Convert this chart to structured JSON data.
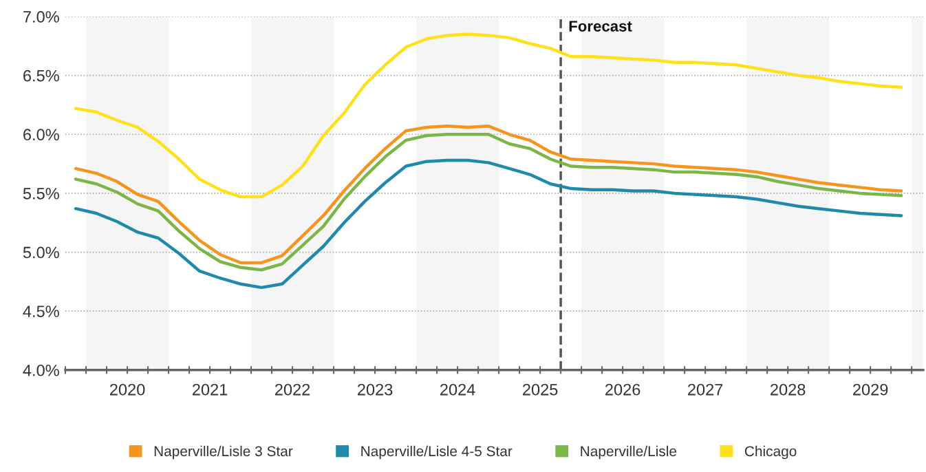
{
  "chart_data": {
    "type": "line",
    "x": [
      2019.875,
      2020.125,
      2020.375,
      2020.625,
      2020.875,
      2021.125,
      2021.375,
      2021.625,
      2021.875,
      2022.125,
      2022.375,
      2022.625,
      2022.875,
      2023.125,
      2023.375,
      2023.625,
      2023.875,
      2024.125,
      2024.375,
      2024.625,
      2024.875,
      2025.125,
      2025.375,
      2025.625,
      2025.875,
      2026.125,
      2026.375,
      2026.625,
      2026.875,
      2027.125,
      2027.375,
      2027.625,
      2027.875,
      2028.125,
      2028.375,
      2028.625,
      2028.875,
      2029.125,
      2029.375,
      2029.625,
      2029.875
    ],
    "series": [
      {
        "name": "Naperville/Lisle 3 Star",
        "color": "#f7941d",
        "values": [
          5.71,
          5.67,
          5.6,
          5.49,
          5.43,
          5.26,
          5.1,
          4.98,
          4.91,
          4.91,
          4.97,
          5.14,
          5.31,
          5.52,
          5.71,
          5.88,
          6.03,
          6.06,
          6.07,
          6.06,
          6.07,
          6.0,
          5.95,
          5.85,
          5.79,
          5.78,
          5.77,
          5.76,
          5.75,
          5.73,
          5.72,
          5.71,
          5.7,
          5.68,
          5.65,
          5.62,
          5.59,
          5.57,
          5.55,
          5.53,
          5.52
        ]
      },
      {
        "name": "Naperville/Lisle 4-5 Star",
        "color": "#1f8aaa",
        "values": [
          5.37,
          5.33,
          5.26,
          5.17,
          5.12,
          4.99,
          4.84,
          4.78,
          4.73,
          4.7,
          4.73,
          4.89,
          5.05,
          5.25,
          5.43,
          5.59,
          5.73,
          5.77,
          5.78,
          5.78,
          5.76,
          5.71,
          5.66,
          5.58,
          5.54,
          5.53,
          5.53,
          5.52,
          5.52,
          5.5,
          5.49,
          5.48,
          5.47,
          5.45,
          5.42,
          5.39,
          5.37,
          5.35,
          5.33,
          5.32,
          5.31
        ]
      },
      {
        "name": "Naperville/Lisle",
        "color": "#7ab648",
        "values": [
          5.62,
          5.58,
          5.51,
          5.41,
          5.35,
          5.18,
          5.03,
          4.92,
          4.87,
          4.85,
          4.9,
          5.06,
          5.22,
          5.45,
          5.64,
          5.81,
          5.95,
          5.99,
          6.0,
          6.0,
          6.0,
          5.92,
          5.88,
          5.79,
          5.73,
          5.72,
          5.72,
          5.71,
          5.7,
          5.68,
          5.68,
          5.67,
          5.66,
          5.64,
          5.6,
          5.57,
          5.54,
          5.52,
          5.5,
          5.49,
          5.48
        ]
      },
      {
        "name": "Chicago",
        "color": "#ffe01b",
        "values": [
          6.22,
          6.19,
          6.12,
          6.06,
          5.94,
          5.79,
          5.62,
          5.53,
          5.47,
          5.47,
          5.57,
          5.73,
          5.99,
          6.18,
          6.42,
          6.59,
          6.74,
          6.81,
          6.84,
          6.85,
          6.84,
          6.82,
          6.77,
          6.73,
          6.66,
          6.66,
          6.65,
          6.64,
          6.63,
          6.61,
          6.61,
          6.6,
          6.59,
          6.56,
          6.53,
          6.5,
          6.48,
          6.45,
          6.43,
          6.41,
          6.4
        ]
      }
    ],
    "xlim": [
      2019.75,
      2030.14
    ],
    "xticks": [
      {
        "value": 2019.75,
        "label": null
      },
      {
        "value": 2020,
        "label": null
      },
      {
        "value": 2020.25,
        "label": null
      },
      {
        "value": 2020.5,
        "label": null
      },
      {
        "value": 2020.75,
        "label": null
      },
      {
        "value": 2021,
        "label": null
      },
      {
        "value": 2021.25,
        "label": null
      },
      {
        "value": 2021.5,
        "label": null
      },
      {
        "value": 2021.75,
        "label": null
      },
      {
        "value": 2022,
        "label": null
      },
      {
        "value": 2022.25,
        "label": null
      },
      {
        "value": 2022.5,
        "label": null
      },
      {
        "value": 2022.75,
        "label": null
      },
      {
        "value": 2023,
        "label": null
      },
      {
        "value": 2023.25,
        "label": null
      },
      {
        "value": 2023.5,
        "label": null
      },
      {
        "value": 2023.75,
        "label": null
      },
      {
        "value": 2024,
        "label": null
      },
      {
        "value": 2024.25,
        "label": null
      },
      {
        "value": 2024.5,
        "label": null
      },
      {
        "value": 2024.75,
        "label": null
      },
      {
        "value": 2025,
        "label": null
      },
      {
        "value": 2025.25,
        "label": null
      },
      {
        "value": 2025.5,
        "label": null
      },
      {
        "value": 2025.75,
        "label": null
      },
      {
        "value": 2026,
        "label": null
      },
      {
        "value": 2026.25,
        "label": null
      },
      {
        "value": 2026.5,
        "label": null
      },
      {
        "value": 2026.75,
        "label": null
      },
      {
        "value": 2027,
        "label": null
      },
      {
        "value": 2027.25,
        "label": null
      },
      {
        "value": 2027.5,
        "label": null
      },
      {
        "value": 2027.75,
        "label": null
      },
      {
        "value": 2028,
        "label": null
      },
      {
        "value": 2028.25,
        "label": null
      },
      {
        "value": 2028.5,
        "label": null
      },
      {
        "value": 2028.75,
        "label": null
      },
      {
        "value": 2029,
        "label": null
      },
      {
        "value": 2029.25,
        "label": null
      },
      {
        "value": 2029.5,
        "label": null
      },
      {
        "value": 2029.75,
        "label": null
      },
      {
        "value": 2030,
        "label": null
      },
      {
        "value": 2020.5,
        "label": "2020"
      },
      {
        "value": 2021.5,
        "label": "2021"
      },
      {
        "value": 2022.5,
        "label": "2022"
      },
      {
        "value": 2023.5,
        "label": "2023"
      },
      {
        "value": 2024.5,
        "label": "2024"
      },
      {
        "value": 2025.5,
        "label": "2025"
      },
      {
        "value": 2026.5,
        "label": "2026"
      },
      {
        "value": 2027.5,
        "label": "2027"
      },
      {
        "value": 2028.5,
        "label": "2028"
      },
      {
        "value": 2029.5,
        "label": "2029"
      }
    ],
    "ylim": [
      4.0,
      7.0
    ],
    "yticks": [
      {
        "value": 4.0,
        "label": "4.0%"
      },
      {
        "value": 4.5,
        "label": "4.5%"
      },
      {
        "value": 5.0,
        "label": "5.0%"
      },
      {
        "value": 5.5,
        "label": "5.5%"
      },
      {
        "value": 6.0,
        "label": "6.0%"
      },
      {
        "value": 6.5,
        "label": "6.5%"
      },
      {
        "value": 7.0,
        "label": "7.0%"
      }
    ],
    "grid": "y",
    "legend": "bottom",
    "line_style": "solid",
    "ref_lines": [
      {
        "axis": "x",
        "value": 2025.75,
        "label": "Forecast",
        "color": "#555555",
        "line_style": "dashed"
      }
    ],
    "bands": [
      {
        "axis": "x",
        "from": 2020,
        "to": 2021,
        "color": "#f5f5f5"
      },
      {
        "axis": "x",
        "from": 2022,
        "to": 2023,
        "color": "#f5f5f5"
      },
      {
        "axis": "x",
        "from": 2024,
        "to": 2025,
        "color": "#f5f5f5"
      },
      {
        "axis": "x",
        "from": 2026,
        "to": 2027,
        "color": "#f5f5f5"
      },
      {
        "axis": "x",
        "from": 2028,
        "to": 2029,
        "color": "#f5f5f5"
      },
      {
        "axis": "x",
        "from": 2030,
        "to": 2030.14,
        "color": "#f5f5f5"
      }
    ]
  }
}
